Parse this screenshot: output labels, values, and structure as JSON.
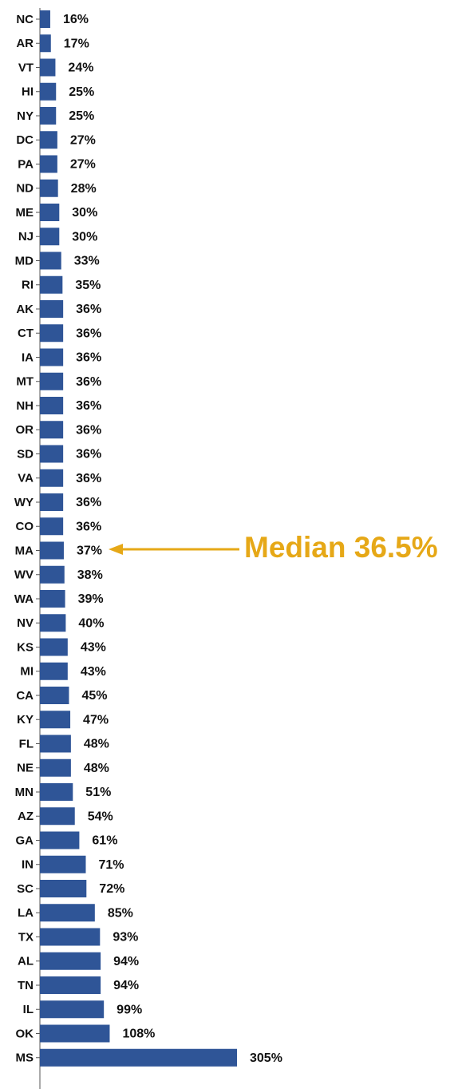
{
  "chart_data": {
    "type": "bar",
    "orientation": "horizontal",
    "categories": [
      "NC",
      "AR",
      "VT",
      "HI",
      "NY",
      "DC",
      "PA",
      "ND",
      "ME",
      "NJ",
      "MD",
      "RI",
      "AK",
      "CT",
      "IA",
      "MT",
      "NH",
      "OR",
      "SD",
      "VA",
      "WY",
      "CO",
      "MA",
      "WV",
      "WA",
      "NV",
      "KS",
      "MI",
      "CA",
      "KY",
      "FL",
      "NE",
      "MN",
      "AZ",
      "GA",
      "IN",
      "SC",
      "LA",
      "TX",
      "AL",
      "TN",
      "IL",
      "OK",
      "MS"
    ],
    "values": [
      16,
      17,
      24,
      25,
      25,
      27,
      27,
      28,
      30,
      30,
      33,
      35,
      36,
      36,
      36,
      36,
      36,
      36,
      36,
      36,
      36,
      36,
      37,
      38,
      39,
      40,
      43,
      43,
      45,
      47,
      48,
      48,
      51,
      54,
      61,
      71,
      72,
      85,
      93,
      94,
      94,
      99,
      108,
      305
    ],
    "value_labels": [
      "16%",
      "17%",
      "24%",
      "25%",
      "25%",
      "27%",
      "27%",
      "28%",
      "30%",
      "30%",
      "33%",
      "35%",
      "36%",
      "36%",
      "36%",
      "36%",
      "36%",
      "36%",
      "36%",
      "36%",
      "36%",
      "36%",
      "37%",
      "38%",
      "39%",
      "40%",
      "43%",
      "43%",
      "45%",
      "47%",
      "48%",
      "48%",
      "51%",
      "54%",
      "61%",
      "71%",
      "72%",
      "85%",
      "93%",
      "94%",
      "94%",
      "99%",
      "108%",
      "305%"
    ],
    "color": "#2f5597",
    "xlim": [
      0,
      305
    ],
    "annotation": "Median 36.5%",
    "annotation_color": "#e6a817"
  }
}
